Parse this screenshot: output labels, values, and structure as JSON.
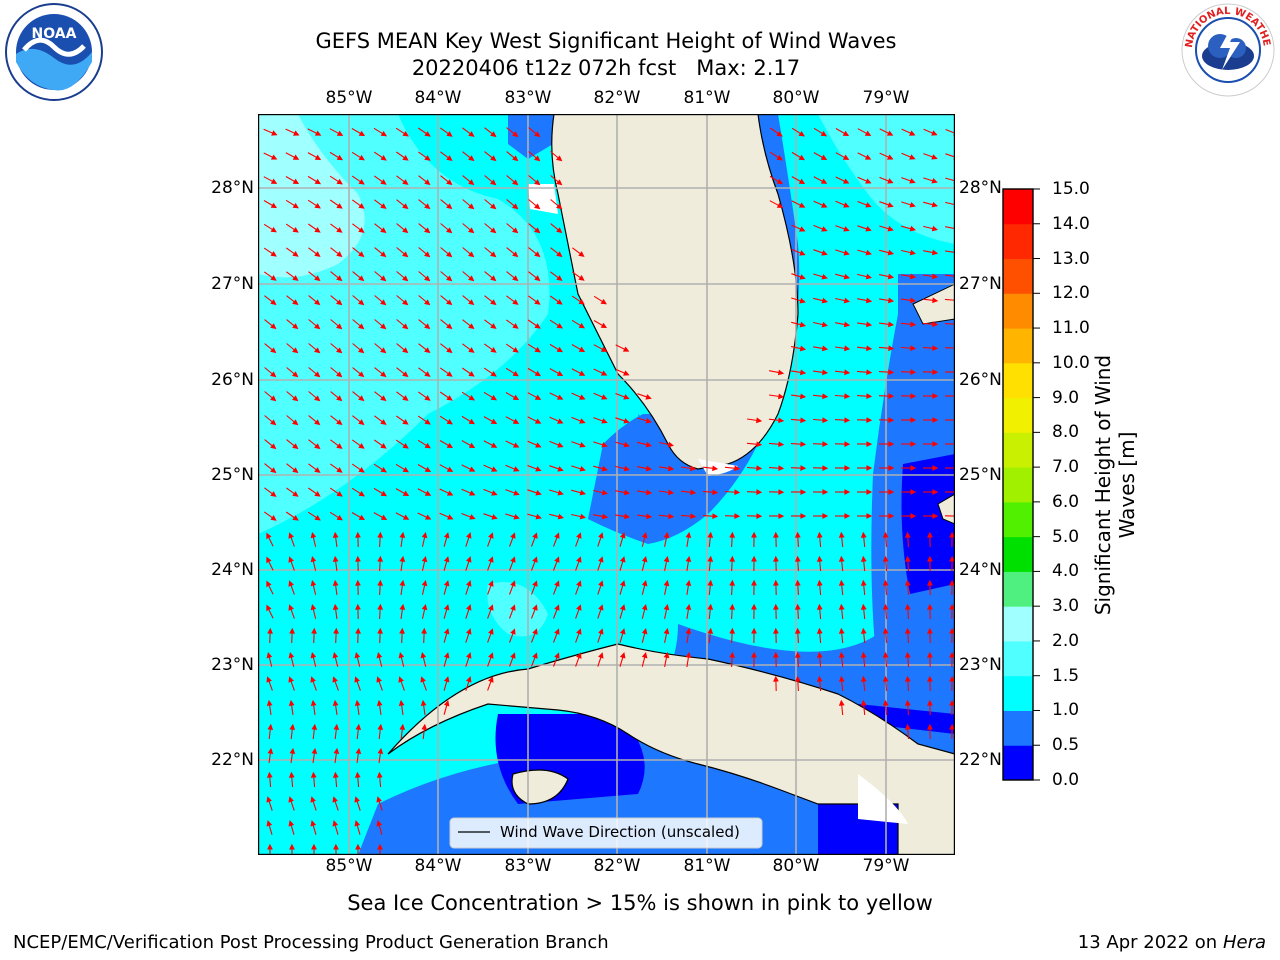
{
  "title": {
    "line1": "GEFS MEAN Key West Significant Height of Wind Waves",
    "line2": "20220406 t12z 072h fcst   Max: 2.17"
  },
  "map": {
    "lon_labels": [
      "85°W",
      "84°W",
      "83°W",
      "82°W",
      "81°W",
      "80°W",
      "79°W"
    ],
    "lat_labels": [
      "28°N",
      "27°N",
      "26°N",
      "25°N",
      "24°N",
      "23°N",
      "22°N"
    ],
    "legend_label": "Wind Wave Direction (unscaled)",
    "land_color": "#efecdc",
    "arrow_color": "#ff0000"
  },
  "colorbar": {
    "label": "Significant Height of Wind Waves [m]",
    "ticks": [
      "0.0",
      "0.5",
      "1.0",
      "1.5",
      "2.0",
      "3.0",
      "4.0",
      "5.0",
      "6.0",
      "7.0",
      "8.0",
      "9.0",
      "10.0",
      "11.0",
      "12.0",
      "13.0",
      "14.0",
      "15.0"
    ],
    "colors": [
      "#0000ff",
      "#1e78ff",
      "#00ffff",
      "#50ffff",
      "#a0ffff",
      "#50f080",
      "#00e000",
      "#50f000",
      "#a0f000",
      "#c8f000",
      "#f0f000",
      "#ffe000",
      "#ffb400",
      "#ff8c00",
      "#ff5000",
      "#ff2800",
      "#ff0000"
    ]
  },
  "note": "Sea Ice Concentration > 15% is shown in pink to yellow",
  "footer": {
    "left": "NCEP/EMC/Verification Post Processing Product Generation Branch",
    "right_date": "13 Apr 2022 on ",
    "right_host": "Hera"
  },
  "logos": {
    "noaa_text": "NOAA",
    "nws_text": "NATIONAL WEATHER SERVICE"
  }
}
